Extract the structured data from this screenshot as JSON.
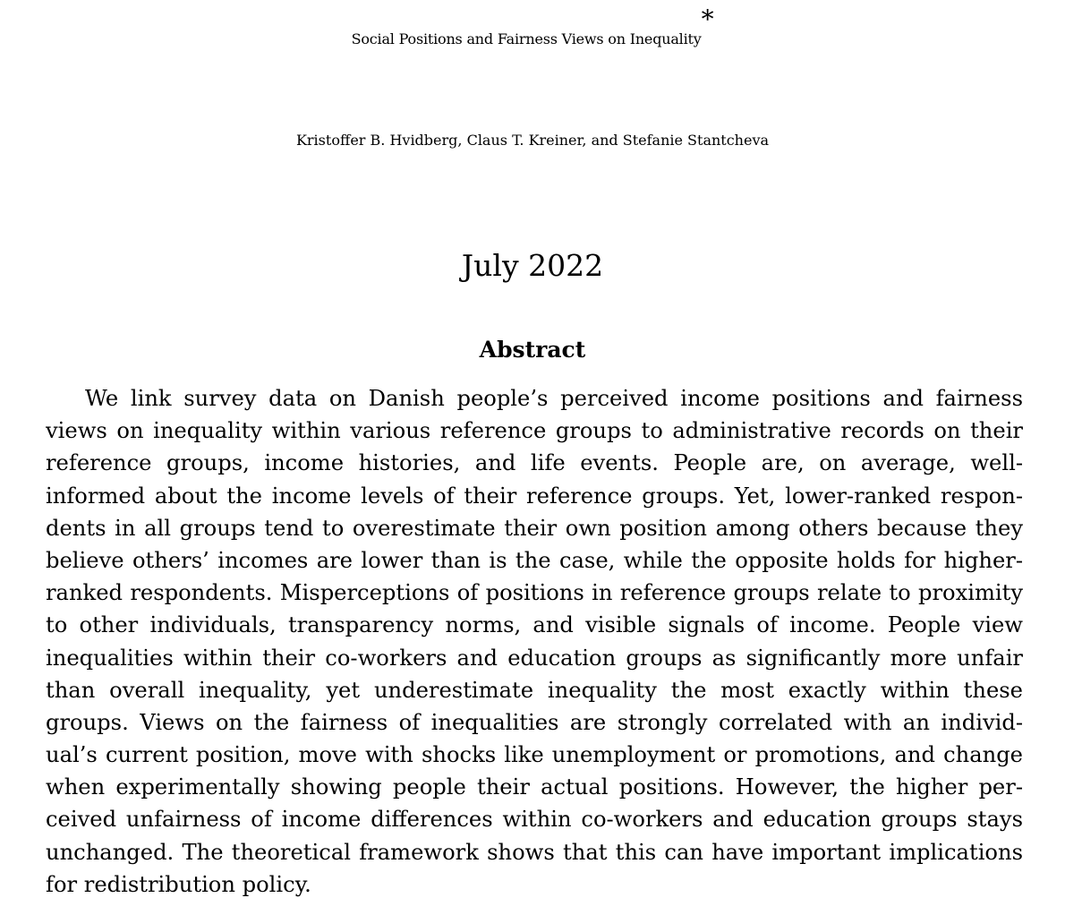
{
  "paper": {
    "title": "Social Positions and Fairness Views on Inequality",
    "title_footnote_mark": "*",
    "authors": "Kristoffer B. Hvidberg, Claus T. Kreiner, and Stefanie Stantcheva",
    "date": "July 2022",
    "abstract_heading": "Abstract",
    "abstract_lines": [
      "We link survey data on Danish people’s perceived income positions and fairness",
      "views on inequality within various reference groups to administrative records on their",
      "reference groups, income histories, and life events.  People are, on average, well-",
      "informed about the income levels of their reference groups. Yet, lower-ranked respon-",
      "dents in all groups tend to overestimate their own position among others because they",
      "believe others’ incomes are lower than is the case, while the opposite holds for higher-",
      "ranked respondents. Misperceptions of positions in reference groups relate to proximity",
      "to other individuals, transparency norms, and visible signals of income. People view",
      "inequalities within their co-workers and education groups as significantly more unfair",
      "than overall inequality, yet underestimate inequality the most exactly within these",
      "groups. Views on the fairness of inequalities are strongly correlated with an individ-",
      "ual’s current position, move with shocks like unemployment or promotions, and change",
      "when experimentally showing people their actual positions. However, the higher per-",
      "ceived unfairness of income differences within co-workers and education groups stays",
      "unchanged. The theoretical framework shows that this can have important implications",
      "for redistribution policy."
    ]
  }
}
